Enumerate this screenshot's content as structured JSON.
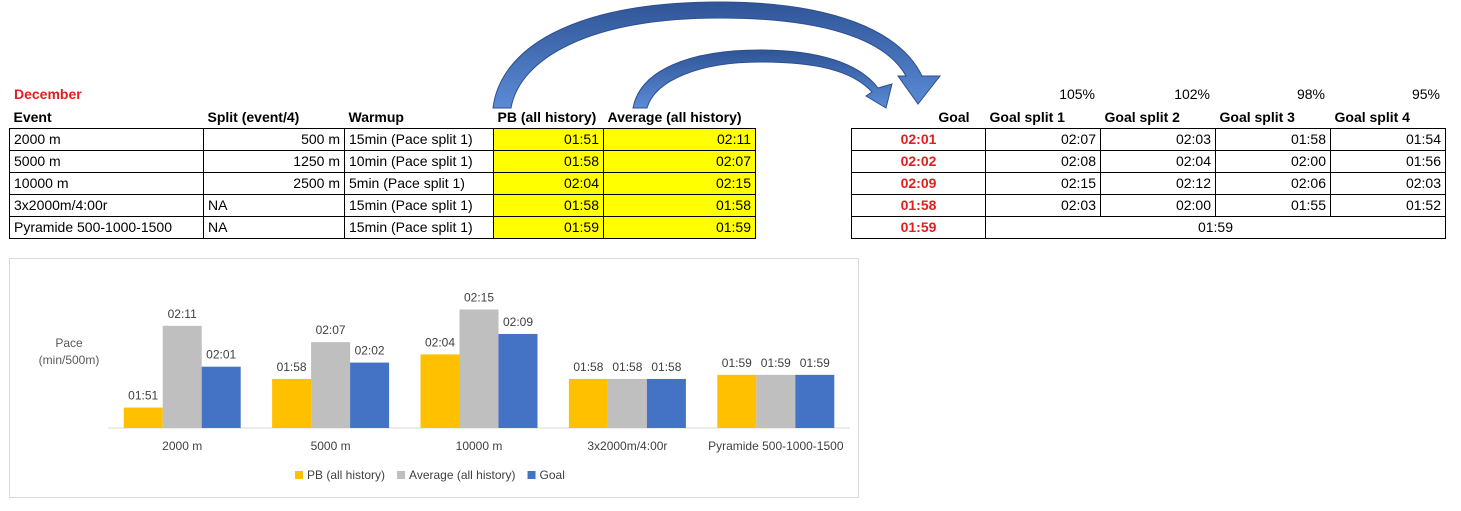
{
  "sheet": {
    "month": "December",
    "headers": [
      "Event",
      "Split (event/4)",
      "Warmup",
      "PB (all history)",
      "Average (all history)"
    ],
    "rows": [
      {
        "event": "2000 m",
        "split": "500 m",
        "warmup": "15min (Pace split 1)",
        "pb": "01:51",
        "avg": "02:11"
      },
      {
        "event": "5000 m",
        "split": "1250 m",
        "warmup": "10min (Pace split 1)",
        "pb": "01:58",
        "avg": "02:07"
      },
      {
        "event": "10000 m",
        "split": "2500 m",
        "warmup": "5min (Pace split 1)",
        "pb": "02:04",
        "avg": "02:15"
      },
      {
        "event": "3x2000m/4:00r",
        "split": "NA",
        "warmup": "15min (Pace split 1)",
        "pb": "01:58",
        "avg": "01:58"
      },
      {
        "event": "Pyramide 500-1000-1500",
        "split": "NA",
        "warmup": "15min (Pace split 1)",
        "pb": "01:59",
        "avg": "01:59"
      }
    ]
  },
  "goals": {
    "percents": [
      "105%",
      "102%",
      "98%",
      "95%"
    ],
    "headers": [
      "Goal",
      "Goal split 1",
      "Goal split 2",
      "Goal split 3",
      "Goal split 4"
    ],
    "rows": [
      {
        "goal": "02:01",
        "splits": [
          "02:07",
          "02:03",
          "01:58",
          "01:54"
        ]
      },
      {
        "goal": "02:02",
        "splits": [
          "02:08",
          "02:04",
          "02:00",
          "01:56"
        ]
      },
      {
        "goal": "02:09",
        "splits": [
          "02:15",
          "02:12",
          "02:06",
          "02:03"
        ]
      },
      {
        "goal": "01:58",
        "splits": [
          "02:03",
          "02:00",
          "01:55",
          "01:52"
        ]
      },
      {
        "goal": "01:59",
        "merged": "01:59"
      }
    ]
  },
  "colors": {
    "pb": "#ffc000",
    "average": "#bfbfbf",
    "goal": "#4472c4",
    "arrow": "#3a66b4",
    "highlight": "#ffff00",
    "goal_text": "#e02020"
  },
  "chart_data": {
    "type": "bar",
    "ylabel": "Pace\n(min/500m)",
    "categories": [
      "2000 m",
      "5000 m",
      "10000 m",
      "3x2000m/4:00r",
      "Pyramide 500-1000-1500"
    ],
    "series": [
      {
        "name": "PB (all history)",
        "values": [
          "01:51",
          "01:58",
          "02:04",
          "01:58",
          "01:59"
        ]
      },
      {
        "name": "Average (all history)",
        "values": [
          "02:11",
          "02:07",
          "02:15",
          "01:58",
          "01:59"
        ]
      },
      {
        "name": "Goal",
        "values": [
          "02:01",
          "02:02",
          "02:09",
          "01:58",
          "01:59"
        ]
      }
    ],
    "ylim_seconds": [
      106,
      140
    ],
    "grid": false,
    "legend_position": "bottom"
  }
}
